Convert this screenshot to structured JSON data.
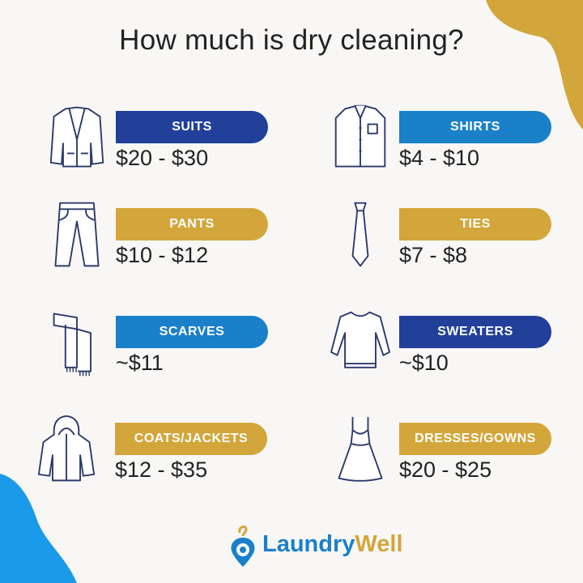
{
  "title": "How much is dry cleaning?",
  "colors": {
    "navy": "#22409a",
    "blue": "#1a80c9",
    "gold": "#d2a63a",
    "text": "#222222"
  },
  "items": [
    {
      "label": "SUITS",
      "price": "$20 - $30",
      "icon": "suit-jacket-icon",
      "color": "#22409a"
    },
    {
      "label": "SHIRTS",
      "price": "$4 - $10",
      "icon": "shirt-icon",
      "color": "#1a80c9"
    },
    {
      "label": "PANTS",
      "price": "$10 - $12",
      "icon": "pants-icon",
      "color": "#d2a63a"
    },
    {
      "label": "TIES",
      "price": "$7 - $8",
      "icon": "tie-icon",
      "color": "#d2a63a"
    },
    {
      "label": "SCARVES",
      "price": "~$11",
      "icon": "scarf-icon",
      "color": "#1a80c9"
    },
    {
      "label": "SWEATERS",
      "price": "~$10",
      "icon": "sweater-icon",
      "color": "#22409a"
    },
    {
      "label": "COATS/JACKETS",
      "price": "$12 - $35",
      "icon": "coat-icon",
      "color": "#d2a63a"
    },
    {
      "label": "DRESSES/GOWNS",
      "price": "$20 - $25",
      "icon": "dress-icon",
      "color": "#d2a63a"
    }
  ],
  "logo": {
    "part1": "Laundry",
    "part2": "Well",
    "icon": "location-hanger-icon"
  }
}
